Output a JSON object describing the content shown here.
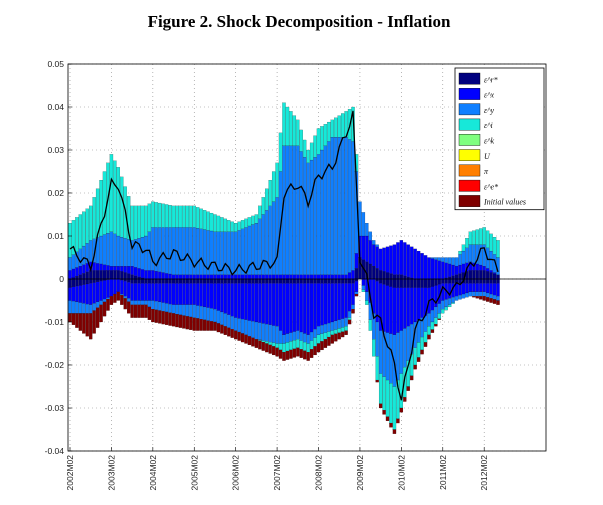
{
  "chart_data": {
    "type": "bar",
    "stacked": true,
    "title": "Figure 2. Shock Decomposition - Inflation",
    "xlabel": "",
    "ylabel": "",
    "ylim": [
      -0.04,
      0.05
    ],
    "yticks": [
      -0.04,
      -0.03,
      -0.02,
      -0.01,
      0,
      0.01,
      0.02,
      0.03,
      0.04,
      0.05
    ],
    "ytick_labels": [
      "-0.04",
      "-0.03",
      "-0.02",
      "-0.01",
      "0",
      "0.01",
      "0.02",
      "0.03",
      "0.04",
      "0.05"
    ],
    "x_start": "2002M02",
    "n_periods": 125,
    "xtick_labels": [
      "2002M02",
      "2003M02",
      "2004M02",
      "2005M02",
      "2006M02",
      "2007M02",
      "2008M02",
      "2009M02",
      "2010M02",
      "2011M02",
      "2012M02"
    ],
    "xtick_index": [
      0,
      12,
      24,
      36,
      48,
      60,
      72,
      84,
      96,
      108,
      120
    ],
    "grid": true,
    "legend_position": "top-right",
    "legend": [
      "ε^r*",
      "ε^x",
      "ε^y",
      "ε^i",
      "ε^k",
      "U",
      "π",
      "ε^e*",
      "Initial values"
    ],
    "colors": [
      "#00007f",
      "#0000ff",
      "#0f7fff",
      "#17e8d9",
      "#7fff7f",
      "#ffff00",
      "#ff7f00",
      "#ff0000",
      "#7f0000"
    ],
    "line_color": "#000000",
    "keypoints": {
      "idx": [
        0,
        6,
        12,
        14,
        18,
        22,
        24,
        30,
        36,
        42,
        48,
        54,
        60,
        62,
        66,
        69,
        72,
        76,
        80,
        82,
        84,
        86,
        88,
        90,
        94,
        96,
        100,
        104,
        108,
        112,
        116,
        120,
        124
      ],
      "eps_y": [
        0.003,
        0.005,
        0.008,
        0.007,
        0.006,
        0.008,
        0.01,
        0.011,
        0.011,
        0.01,
        0.01,
        0.012,
        0.018,
        0.03,
        0.03,
        0.026,
        0.028,
        0.032,
        0.032,
        0.03,
        0.008,
        0.003,
        0.001,
        0.0,
        0.0,
        0.0,
        0.0,
        0.0,
        0.001,
        0.002,
        0.004,
        0.005,
        0.004
      ],
      "eps_i": [
        0.008,
        0.008,
        0.018,
        0.016,
        0.008,
        0.007,
        0.006,
        0.005,
        0.005,
        0.004,
        0.002,
        0.002,
        0.008,
        0.01,
        0.006,
        0.003,
        0.006,
        0.004,
        0.006,
        0.008,
        0.0,
        0.0,
        0.0,
        0.0,
        0.0,
        0.0,
        0.0,
        0.0,
        0.0,
        0.0,
        0.003,
        0.004,
        0.004
      ],
      "eps_x_pos": [
        0.002,
        0.002,
        0.001,
        0.001,
        0.002,
        0.002,
        0.002,
        0.001,
        0.001,
        0.001,
        0.001,
        0.001,
        0.001,
        0.001,
        0.001,
        0.001,
        0.001,
        0.001,
        0.001,
        0.002,
        0.005,
        0.006,
        0.005,
        0.005,
        0.007,
        0.008,
        0.007,
        0.005,
        0.004,
        0.002,
        0.002,
        0.001,
        0.0
      ],
      "eps_r_pos": [
        0.0,
        0.002,
        0.002,
        0.002,
        0.001,
        0.0,
        0.0,
        0.0,
        0.0,
        0.0,
        0.0,
        0.0,
        0.0,
        0.0,
        0.0,
        0.0,
        0.0,
        0.0,
        0.0,
        0.0,
        0.005,
        0.004,
        0.003,
        0.002,
        0.001,
        0.001,
        0.0,
        0.0,
        0.0,
        0.001,
        0.002,
        0.002,
        0.001
      ],
      "eps_r_neg": [
        -0.002,
        -0.001,
        0.0,
        0.0,
        -0.001,
        -0.001,
        -0.001,
        -0.001,
        -0.001,
        -0.001,
        -0.001,
        -0.001,
        -0.001,
        -0.001,
        -0.001,
        -0.001,
        -0.001,
        -0.001,
        -0.001,
        -0.001,
        0.0,
        0.0,
        0.0,
        -0.001,
        -0.002,
        -0.002,
        -0.002,
        -0.002,
        -0.001,
        -0.001,
        -0.001,
        -0.001,
        -0.001
      ],
      "eps_x_neg": [
        -0.003,
        -0.005,
        -0.004,
        -0.003,
        -0.004,
        -0.004,
        -0.004,
        -0.005,
        -0.005,
        -0.006,
        -0.008,
        -0.009,
        -0.01,
        -0.012,
        -0.011,
        -0.012,
        -0.01,
        -0.009,
        -0.008,
        -0.005,
        0.0,
        -0.003,
        -0.008,
        -0.011,
        -0.011,
        -0.01,
        -0.008,
        -0.006,
        -0.004,
        -0.003,
        -0.002,
        -0.002,
        -0.003
      ],
      "eps_y_neg": [
        -0.003,
        -0.002,
        0.0,
        0.0,
        -0.001,
        -0.001,
        -0.002,
        -0.002,
        -0.003,
        -0.003,
        -0.003,
        -0.004,
        -0.004,
        -0.002,
        -0.002,
        -0.002,
        -0.002,
        -0.002,
        -0.002,
        -0.001,
        0.0,
        -0.002,
        -0.006,
        -0.01,
        -0.012,
        -0.01,
        -0.006,
        -0.003,
        -0.002,
        -0.001,
        -0.001,
        -0.001,
        -0.001
      ],
      "eps_i_neg": [
        0.0,
        0.0,
        0.0,
        0.0,
        0.0,
        0.0,
        0.0,
        0.0,
        0.0,
        0.0,
        0.0,
        0.0,
        -0.001,
        -0.002,
        -0.002,
        -0.002,
        -0.002,
        -0.001,
        -0.001,
        0.0,
        0.0,
        -0.001,
        -0.004,
        -0.007,
        -0.01,
        -0.008,
        -0.004,
        -0.002,
        -0.001,
        0.0,
        0.0,
        0.0,
        0.0
      ],
      "initial": [
        -0.002,
        -0.006,
        -0.002,
        -0.002,
        -0.003,
        -0.003,
        -0.003,
        -0.003,
        -0.003,
        -0.002,
        -0.002,
        -0.002,
        -0.002,
        -0.002,
        -0.002,
        -0.002,
        -0.002,
        -0.002,
        -0.001,
        -0.001,
        0.0,
        0.0,
        0.0,
        -0.001,
        -0.001,
        -0.001,
        -0.001,
        -0.001,
        0.0,
        0.0,
        0.0,
        -0.001,
        -0.001
      ],
      "line": [
        0.007,
        0.003,
        0.022,
        0.022,
        0.008,
        0.007,
        0.004,
        0.006,
        0.004,
        0.003,
        0.002,
        0.003,
        0.004,
        0.02,
        0.022,
        0.018,
        0.024,
        0.026,
        0.034,
        0.038,
        0.005,
        0.0,
        -0.008,
        -0.01,
        -0.02,
        -0.028,
        -0.012,
        -0.006,
        -0.003,
        -0.002,
        0.003,
        0.007,
        0.002
      ]
    }
  }
}
